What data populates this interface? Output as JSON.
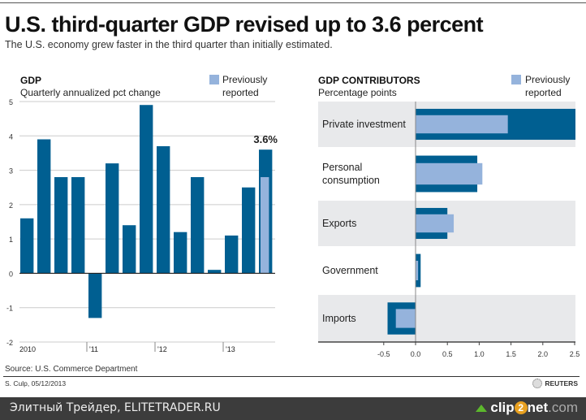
{
  "header": {
    "title": "U.S. third-quarter GDP revised up to 3.6 percent",
    "subtitle": "The U.S. economy grew faster in the third quarter than initially estimated."
  },
  "colors": {
    "current": "#005f91",
    "previous": "#95b3dc",
    "band": "#e8e9eb",
    "grid": "#cccccc"
  },
  "chart_data": [
    {
      "type": "bar",
      "title": "GDP",
      "subtitle": "Quarterly annualized pct change",
      "legend": {
        "label_line1": "Previously",
        "label_line2": "reported",
        "placement": "top-right"
      },
      "ylim": [
        -2,
        5
      ],
      "yticks": [
        5,
        4,
        3,
        2,
        1,
        0,
        -1,
        -2
      ],
      "year_labels": [
        {
          "label": "2010",
          "index": 0
        },
        {
          "label": "'11",
          "index": 4
        },
        {
          "label": "'12",
          "index": 8
        },
        {
          "label": "'13",
          "index": 12
        }
      ],
      "values": [
        1.6,
        3.9,
        2.8,
        2.8,
        -1.3,
        3.2,
        1.4,
        4.9,
        3.7,
        1.2,
        2.8,
        0.1,
        1.1,
        2.5,
        3.6
      ],
      "previous": {
        "index": 14,
        "value": 2.8
      },
      "annotation": "3.6%"
    },
    {
      "type": "bar",
      "orientation": "horizontal",
      "title": "GDP CONTRIBUTORS",
      "subtitle": "Percentage points",
      "legend": {
        "label_line1": "Previously",
        "label_line2": "reported",
        "placement": "top-right"
      },
      "xlim": [
        -0.5,
        2.5
      ],
      "xticks": [
        "-0.5",
        "0.0",
        "0.5",
        "1.0",
        "1.5",
        "2.0",
        "2.5"
      ],
      "categories": [
        [
          "Private investment"
        ],
        [
          "Personal",
          "consumption"
        ],
        [
          "Exports"
        ],
        [
          "Government"
        ],
        [
          "Imports"
        ]
      ],
      "series": [
        {
          "name": "Current",
          "values": [
            2.6,
            0.97,
            0.5,
            0.08,
            -0.44
          ]
        },
        {
          "name": "Previously reported",
          "values": [
            1.45,
            1.05,
            0.6,
            0.04,
            -0.31
          ]
        }
      ]
    }
  ],
  "footer": {
    "source": "Source: U.S. Commerce Department",
    "credit": "S. Culp, 05/12/2013",
    "brand": "REUTERS"
  },
  "watermark": {
    "left": "Элитный Трейдер, ELITETRADER.RU",
    "clip": "clip",
    "two": "2",
    "net": "net",
    ".com": ".com"
  }
}
